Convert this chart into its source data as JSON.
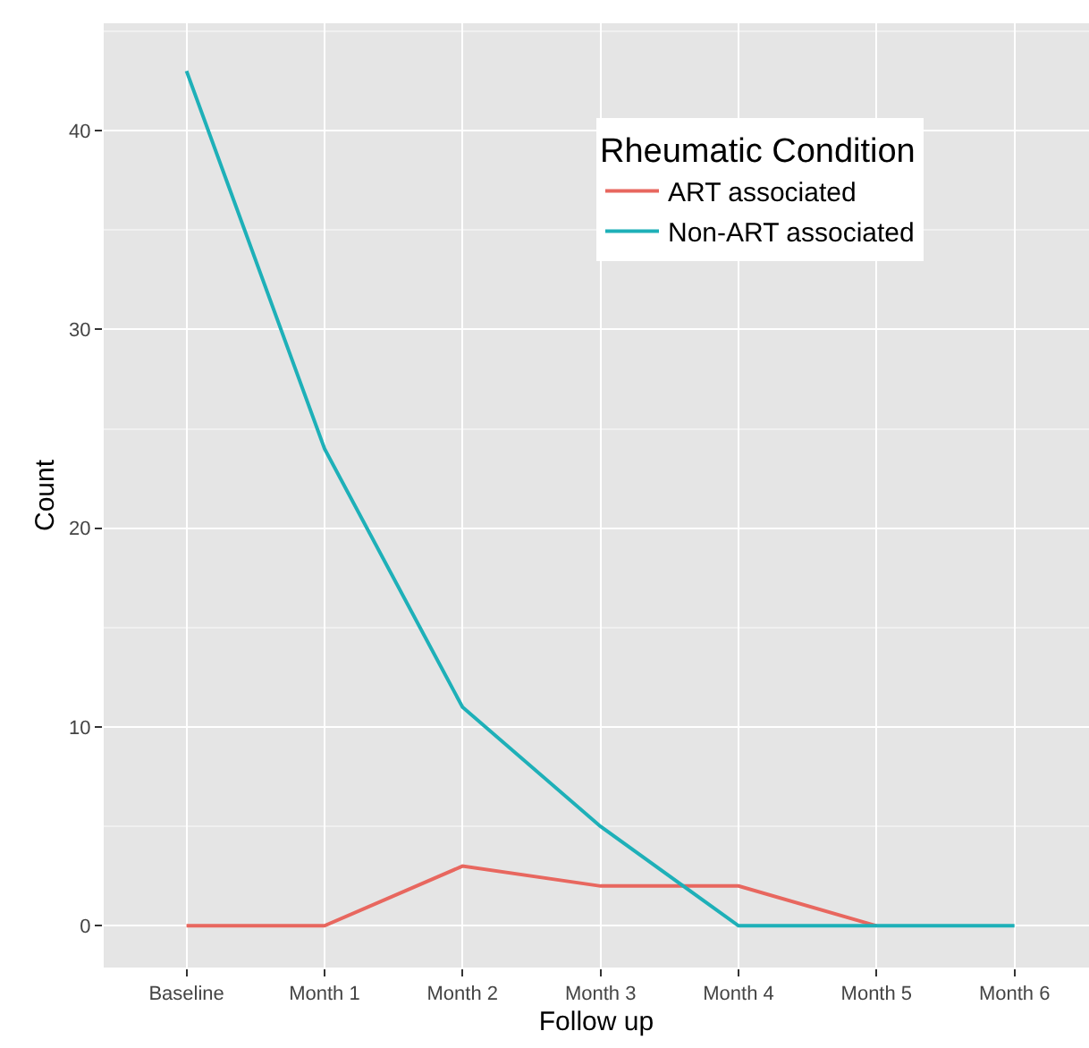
{
  "chart_data": {
    "type": "line",
    "xlabel": "Follow up",
    "ylabel": "Count",
    "legend_title": "Rheumatic Condition",
    "categories": [
      "Baseline",
      "Month 1",
      "Month 2",
      "Month 3",
      "Month 4",
      "Month 5",
      "Month 6"
    ],
    "series": [
      {
        "name": "ART associated",
        "color": "#e8675f",
        "values": [
          0,
          0,
          3,
          2,
          2,
          0,
          null
        ]
      },
      {
        "name": "Non-ART associated",
        "color": "#1eb0b8",
        "values": [
          43,
          24,
          11,
          5,
          0,
          0,
          0
        ]
      }
    ],
    "ylim": [
      -2.1,
      45.4
    ],
    "yticks": [
      0,
      10,
      20,
      30,
      40
    ],
    "grid": true,
    "legend": "top right",
    "marker": "none",
    "line_style": "solid"
  }
}
